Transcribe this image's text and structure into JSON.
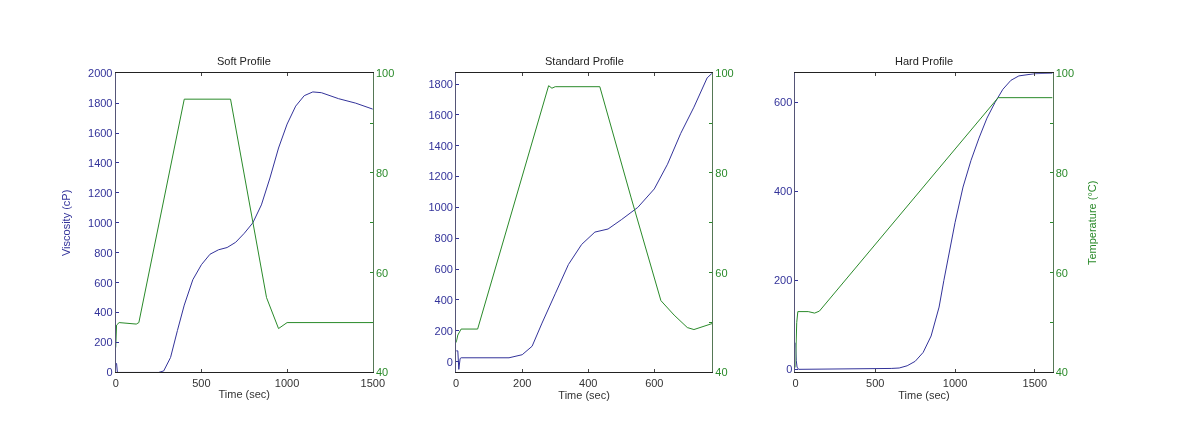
{
  "chart_data": [
    {
      "type": "line",
      "title": "Soft Profile",
      "xlabel": "Time (sec)",
      "ylabel": "Viscosity (cP)",
      "xlim": [
        0,
        1500
      ],
      "xticks": [
        0,
        500,
        1000,
        1500
      ],
      "ylim": [
        0,
        2000
      ],
      "yticks": [
        0,
        200,
        400,
        600,
        800,
        1000,
        1200,
        1400,
        1600,
        1800,
        2000
      ],
      "y2lim": [
        40,
        100
      ],
      "y2ticks": [
        40,
        {
          "value": 50,
          "label": null
        },
        60,
        {
          "value": 70,
          "label": null
        },
        80,
        {
          "value": 90,
          "label": null
        },
        100
      ],
      "series": [
        {
          "color": "#33339a",
          "x": [
            0,
            5,
            10,
            250,
            280,
            320,
            360,
            400,
            450,
            500,
            550,
            600,
            650,
            700,
            750,
            800,
            850,
            900,
            950,
            1000,
            1050,
            1100,
            1150,
            1200,
            1300,
            1400,
            1500
          ],
          "values": [
            60,
            60,
            0,
            0,
            10,
            100,
            280,
            450,
            620,
            720,
            790,
            820,
            835,
            870,
            930,
            1000,
            1120,
            1300,
            1500,
            1660,
            1780,
            1850,
            1875,
            1870,
            1830,
            1800,
            1760
          ]
        },
        {
          "color": "#2a8a2a",
          "axis": "y2",
          "x": [
            0,
            5,
            20,
            120,
            135,
            400,
            670,
            880,
            950,
            1000,
            1500
          ],
          "values": [
            45,
            49.5,
            50,
            49.7,
            50,
            94.8,
            94.8,
            55,
            48.8,
            50,
            50
          ]
        }
      ]
    },
    {
      "type": "line",
      "title": "Standard Profile",
      "xlabel": "Time (sec)",
      "xlim": [
        0,
        775
      ],
      "xticks": [
        0,
        200,
        400,
        600
      ],
      "ylim": [
        -70,
        1870
      ],
      "yticks": [
        0,
        200,
        400,
        600,
        800,
        1000,
        1200,
        1400,
        1600,
        1800
      ],
      "y2lim": [
        40,
        100
      ],
      "y2ticks": [
        40,
        {
          "value": 50,
          "label": null
        },
        60,
        {
          "value": 70,
          "label": null
        },
        80,
        {
          "value": 90,
          "label": null
        },
        100
      ],
      "series": [
        {
          "color": "#33339a",
          "x": [
            0,
            5,
            8,
            12,
            15,
            160,
            200,
            230,
            260,
            300,
            340,
            380,
            420,
            460,
            500,
            550,
            600,
            640,
            680,
            720,
            760,
            775
          ],
          "values": [
            70,
            70,
            -50,
            20,
            25,
            25,
            45,
            100,
            250,
            440,
            630,
            760,
            840,
            860,
            920,
            1000,
            1120,
            1280,
            1480,
            1650,
            1840,
            1870
          ]
        },
        {
          "color": "#2a8a2a",
          "axis": "y2",
          "x": [
            0,
            5,
            15,
            65,
            280,
            290,
            300,
            435,
            530,
            620,
            660,
            700,
            720,
            775
          ],
          "values": [
            46,
            47.5,
            48.7,
            48.7,
            97.5,
            97,
            97.3,
            97.3,
            75,
            54.4,
            51.5,
            49,
            48.6,
            49.8
          ]
        }
      ]
    },
    {
      "type": "line",
      "title": "Hard Profile",
      "xlabel": "Time (sec)",
      "y2label": "Temperature (°C)",
      "xlim": [
        0,
        1611
      ],
      "xticks": [
        0,
        500,
        1000,
        1500
      ],
      "ylim": [
        -7,
        666
      ],
      "yticks": [
        0,
        200,
        400,
        600
      ],
      "y2lim": [
        40,
        100
      ],
      "y2ticks": [
        40,
        {
          "value": 50,
          "label": null
        },
        60,
        {
          "value": 70,
          "label": null
        },
        80,
        {
          "value": 90,
          "label": null
        },
        100
      ],
      "series": [
        {
          "color": "#33339a",
          "x": [
            0,
            5,
            10,
            20,
            600,
            650,
            700,
            750,
            800,
            850,
            900,
            930,
            1000,
            1050,
            1100,
            1150,
            1200,
            1250,
            1300,
            1350,
            1400,
            1500,
            1611
          ],
          "values": [
            60,
            20,
            5,
            0,
            2,
            3,
            8,
            18,
            38,
            75,
            140,
            200,
            330,
            410,
            470,
            520,
            565,
            600,
            630,
            650,
            660,
            665,
            666
          ]
        },
        {
          "color": "#2a8a2a",
          "axis": "y2",
          "x": [
            0,
            8,
            15,
            80,
            120,
            150,
            1270,
            1611
          ],
          "values": [
            41,
            50,
            52.2,
            52.2,
            51.9,
            52.3,
            95.1,
            95.1
          ]
        }
      ]
    }
  ]
}
